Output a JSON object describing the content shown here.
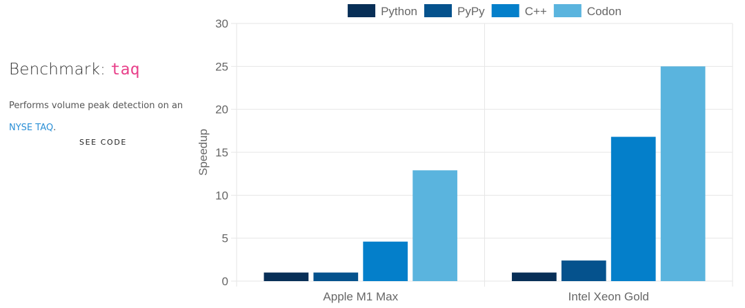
{
  "benchmark": {
    "heading_prefix": "Benchmark: ",
    "name": "taq",
    "description": "Performs volume peak detection on an",
    "link_text": "NYSE TAQ",
    "link_suffix": ".",
    "see_code_label": "SEE CODE"
  },
  "chart_data": {
    "type": "bar",
    "categories": [
      "Apple M1 Max",
      "Intel Xeon Gold"
    ],
    "series": [
      {
        "name": "Python",
        "color": "#082f57",
        "values": [
          1,
          1
        ]
      },
      {
        "name": "PyPy",
        "color": "#05528d",
        "values": [
          1,
          2.4
        ]
      },
      {
        "name": "C++",
        "color": "#047fca",
        "values": [
          4.6,
          16.8
        ]
      },
      {
        "name": "Codon",
        "color": "#5ab4de",
        "values": [
          12.9,
          25
        ]
      }
    ],
    "ylabel": "Speedup",
    "xlabel": "",
    "ylim": [
      0,
      30
    ],
    "yticks": [
      0,
      5,
      10,
      15,
      20,
      25,
      30
    ],
    "grid": true,
    "legend": "top"
  }
}
